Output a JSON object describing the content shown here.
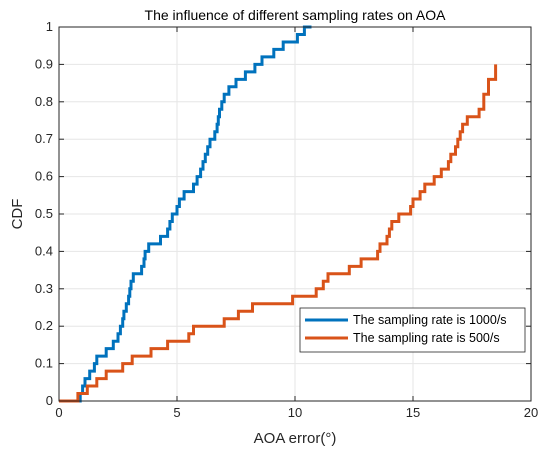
{
  "chart_data": {
    "type": "line",
    "title": "The influence of different sampling rates on AOA",
    "xlabel": "AOA error(°)",
    "ylabel": "CDF",
    "xlim": [
      0,
      20
    ],
    "ylim": [
      0,
      1
    ],
    "xticks": [
      "0",
      "5",
      "10",
      "15",
      "20"
    ],
    "yticks": [
      "0",
      "0.1",
      "0.2",
      "0.3",
      "0.4",
      "0.5",
      "0.6",
      "0.7",
      "0.8",
      "0.9",
      "1"
    ],
    "grid": true,
    "legend_position": "lower-right",
    "step": true,
    "series": [
      {
        "name": "The sampling rate is 1000/s",
        "color": "#0072BD",
        "x": [
          0,
          0.9,
          1.0,
          1.1,
          1.3,
          1.5,
          1.6,
          2.0,
          2.3,
          2.5,
          2.6,
          2.7,
          2.75,
          2.85,
          2.95,
          3.0,
          3.05,
          3.15,
          3.5,
          3.6,
          3.65,
          3.8,
          4.3,
          4.6,
          4.7,
          4.8,
          5.0,
          5.1,
          5.3,
          5.7,
          5.85,
          6.0,
          6.1,
          6.2,
          6.3,
          6.4,
          6.6,
          6.7,
          6.75,
          6.8,
          6.9,
          7.0,
          7.2,
          7.5,
          7.9,
          8.3,
          8.6,
          9.1,
          9.5,
          10.1,
          10.4,
          10.5,
          10.6,
          10.7
        ],
        "y": [
          0,
          0.02,
          0.04,
          0.06,
          0.08,
          0.1,
          0.12,
          0.14,
          0.16,
          0.18,
          0.2,
          0.22,
          0.24,
          0.26,
          0.28,
          0.3,
          0.32,
          0.34,
          0.36,
          0.38,
          0.4,
          0.42,
          0.44,
          0.46,
          0.48,
          0.5,
          0.52,
          0.54,
          0.56,
          0.58,
          0.6,
          0.62,
          0.64,
          0.66,
          0.68,
          0.7,
          0.72,
          0.74,
          0.76,
          0.78,
          0.8,
          0.82,
          0.84,
          0.86,
          0.88,
          0.9,
          0.92,
          0.94,
          0.96,
          0.98,
          1.0,
          1.0,
          1.0,
          1.0
        ]
      },
      {
        "name": "The sampling rate is 500/s",
        "color": "#D95319",
        "x": [
          0,
          0.8,
          1.0,
          1.2,
          1.6,
          2.0,
          2.7,
          3.1,
          3.9,
          4.6,
          5.5,
          5.7,
          7.0,
          7.6,
          8.2,
          9.9,
          10.9,
          11.2,
          11.4,
          12.3,
          12.8,
          13.5,
          13.6,
          13.9,
          14.0,
          14.1,
          14.4,
          14.9,
          15.0,
          15.3,
          15.5,
          15.9,
          16.2,
          16.5,
          16.6,
          16.8,
          16.9,
          17.0,
          17.1,
          17.3,
          17.8,
          18.0,
          18.2,
          18.5
        ],
        "y": [
          0,
          0.02,
          0.02,
          0.04,
          0.06,
          0.08,
          0.1,
          0.12,
          0.14,
          0.16,
          0.18,
          0.2,
          0.22,
          0.24,
          0.26,
          0.28,
          0.3,
          0.32,
          0.34,
          0.36,
          0.38,
          0.4,
          0.42,
          0.44,
          0.46,
          0.48,
          0.5,
          0.52,
          0.54,
          0.56,
          0.58,
          0.6,
          0.62,
          0.64,
          0.66,
          0.68,
          0.7,
          0.72,
          0.74,
          0.76,
          0.78,
          0.82,
          0.86,
          0.9
        ]
      }
    ]
  }
}
